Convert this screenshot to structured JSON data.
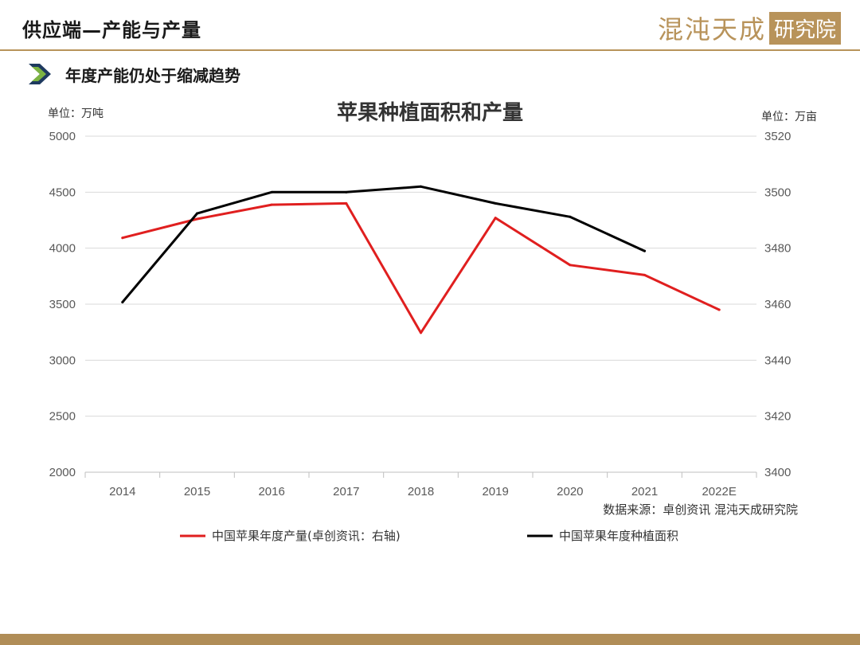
{
  "header": {
    "title": "供应端—产能与产量",
    "logo_text": "混沌天成",
    "logo_seal": "研究院"
  },
  "section": {
    "title": "年度产能仍处于缩减趋势",
    "icon": "chevron-right-icon"
  },
  "colors": {
    "accent": "#b8935a",
    "production": "#e01f1f",
    "area": "#000000",
    "grid": "#d9d9d9"
  },
  "chart_data": {
    "type": "line",
    "title": "苹果种植面积和产量",
    "left_unit": "单位：万吨",
    "right_unit": "单位：万亩",
    "source": "数据来源：卓创资讯 混沌天成研究院",
    "categories": [
      "2014",
      "2015",
      "2016",
      "2017",
      "2018",
      "2019",
      "2020",
      "2021",
      "2022E"
    ],
    "left_axis": {
      "ylim": [
        2000,
        5000
      ],
      "ticks": [
        2000,
        2500,
        3000,
        3500,
        4000,
        4500,
        5000
      ]
    },
    "right_axis": {
      "ylim": [
        3400,
        3520
      ],
      "ticks": [
        3400,
        3420,
        3440,
        3460,
        3480,
        3500,
        3520
      ]
    },
    "grid": true,
    "legend_position": "bottom",
    "series": [
      {
        "name": "中国苹果年度产量(卓创资讯：右轴)",
        "axis": "left",
        "color": "#e01f1f",
        "values": [
          4092,
          4261,
          4388,
          4400,
          3245,
          4270,
          3850,
          3760,
          3450
        ]
      },
      {
        "name": "中国苹果年度种植面积",
        "axis": "left",
        "color": "#000000",
        "values": [
          3518,
          4310,
          4500,
          4500,
          4550,
          4400,
          4280,
          3975,
          null
        ]
      }
    ]
  }
}
